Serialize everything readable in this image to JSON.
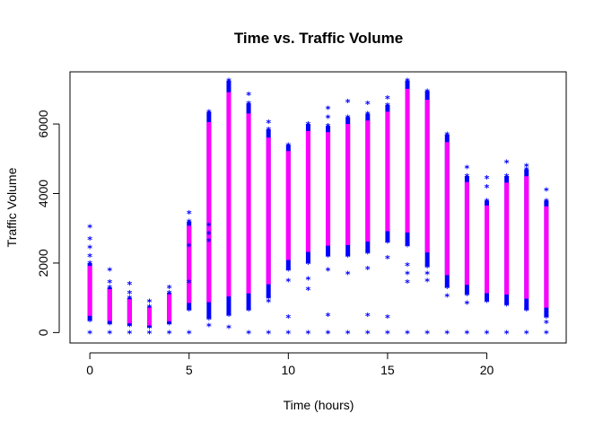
{
  "chart_data": {
    "type": "scatter",
    "title": "Time vs. Traffic Volume",
    "xlabel": "Time (hours)",
    "ylabel": "Traffic Volume",
    "xlim": [
      -1,
      24
    ],
    "ylim": [
      -300,
      7500
    ],
    "x_ticks": [
      0,
      5,
      10,
      15,
      20
    ],
    "y_ticks": [
      0,
      2000,
      4000,
      6000
    ],
    "grid": false,
    "marker": "*",
    "colors": {
      "points": "#0000ff",
      "dense_band": "#ff00ff",
      "axes": "#000000"
    },
    "hours": [
      {
        "x": 0,
        "min": 350,
        "max": 2000,
        "outliers": [
          0,
          2200,
          2450,
          2700,
          3050
        ]
      },
      {
        "x": 1,
        "min": 250,
        "max": 1300,
        "outliers": [
          0,
          1450,
          1800
        ]
      },
      {
        "x": 2,
        "min": 200,
        "max": 1000,
        "outliers": [
          0,
          1150,
          1400
        ]
      },
      {
        "x": 3,
        "min": 150,
        "max": 750,
        "outliers": [
          0,
          900
        ]
      },
      {
        "x": 4,
        "min": 250,
        "max": 1150,
        "outliers": [
          0,
          1300
        ]
      },
      {
        "x": 5,
        "min": 650,
        "max": 3200,
        "outliers": [
          0,
          1450,
          2500,
          3450
        ]
      },
      {
        "x": 6,
        "min": 400,
        "max": 6350,
        "outliers": [
          200,
          2650,
          2850,
          3100
        ]
      },
      {
        "x": 7,
        "min": 500,
        "max": 7250,
        "outliers": [
          150
        ]
      },
      {
        "x": 8,
        "min": 650,
        "max": 6600,
        "outliers": [
          0,
          6850
        ]
      },
      {
        "x": 9,
        "min": 1000,
        "max": 5850,
        "outliers": [
          0,
          900,
          6050
        ]
      },
      {
        "x": 10,
        "min": 1800,
        "max": 5400,
        "outliers": [
          0,
          450,
          1500
        ]
      },
      {
        "x": 11,
        "min": 2000,
        "max": 6000,
        "outliers": [
          0,
          1250,
          1550
        ]
      },
      {
        "x": 12,
        "min": 2200,
        "max": 5950,
        "outliers": [
          0,
          500,
          1800,
          6200,
          6450
        ]
      },
      {
        "x": 13,
        "min": 2200,
        "max": 6200,
        "outliers": [
          0,
          1700,
          6650
        ]
      },
      {
        "x": 14,
        "min": 2300,
        "max": 6300,
        "outliers": [
          0,
          500,
          1850,
          6600
        ]
      },
      {
        "x": 15,
        "min": 2600,
        "max": 6550,
        "outliers": [
          0,
          450,
          2150,
          6750
        ]
      },
      {
        "x": 16,
        "min": 2500,
        "max": 7250,
        "outliers": [
          0,
          1450,
          1700,
          1950
        ]
      },
      {
        "x": 17,
        "min": 1900,
        "max": 6950,
        "outliers": [
          0,
          1500,
          1700
        ]
      },
      {
        "x": 18,
        "min": 1300,
        "max": 5700,
        "outliers": [
          0,
          1050
        ]
      },
      {
        "x": 19,
        "min": 1100,
        "max": 4500,
        "outliers": [
          0,
          850,
          4750
        ]
      },
      {
        "x": 20,
        "min": 900,
        "max": 3800,
        "outliers": [
          0,
          4200,
          4450
        ]
      },
      {
        "x": 21,
        "min": 800,
        "max": 4500,
        "outliers": [
          0,
          4900
        ]
      },
      {
        "x": 22,
        "min": 650,
        "max": 4700,
        "outliers": [
          0,
          4800
        ]
      },
      {
        "x": 23,
        "min": 450,
        "max": 3800,
        "outliers": [
          0,
          300,
          4100
        ]
      }
    ]
  }
}
